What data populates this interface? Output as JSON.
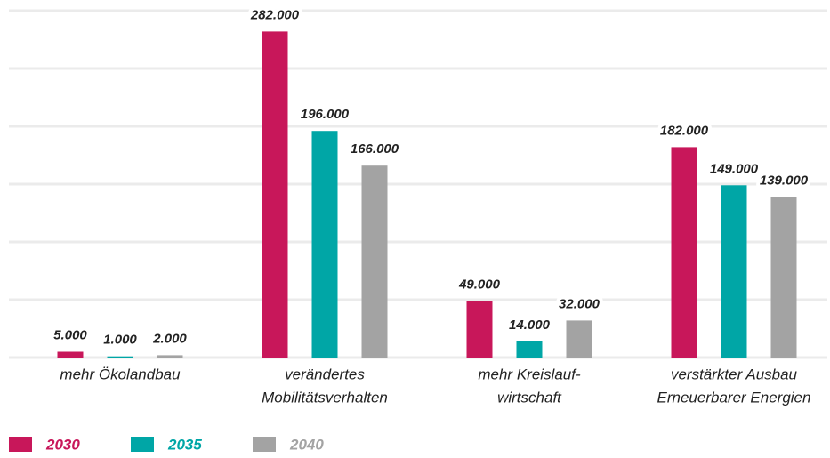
{
  "chart_data": {
    "type": "bar",
    "categories": [
      [
        "mehr Ökolandbau"
      ],
      [
        "verändertes",
        "Mobilitätsverhalten"
      ],
      [
        "mehr Kreislauf-",
        "wirtschaft"
      ],
      [
        "verstärkter Ausbau",
        "Erneuerbarer Energien"
      ]
    ],
    "series": [
      {
        "name": "2030",
        "color": "#c8175a",
        "values": [
          5000,
          282000,
          49000,
          182000
        ],
        "value_labels": [
          "5.000",
          "282.000",
          "49.000",
          "182.000"
        ]
      },
      {
        "name": "2035",
        "color": "#00a6a6",
        "values": [
          1000,
          196000,
          14000,
          149000
        ],
        "value_labels": [
          "1.000",
          "196.000",
          "14.000",
          "149.000"
        ]
      },
      {
        "name": "2040",
        "color": "#a3a3a3",
        "values": [
          2000,
          166000,
          32000,
          139000
        ],
        "value_labels": [
          "2.000",
          "166.000",
          "32.000",
          "139.000"
        ]
      }
    ],
    "ylim": [
      0,
      300000
    ],
    "yticks": [
      0,
      50000,
      100000,
      150000,
      200000,
      250000,
      300000
    ],
    "grid": true,
    "legend": "bottom-left"
  }
}
